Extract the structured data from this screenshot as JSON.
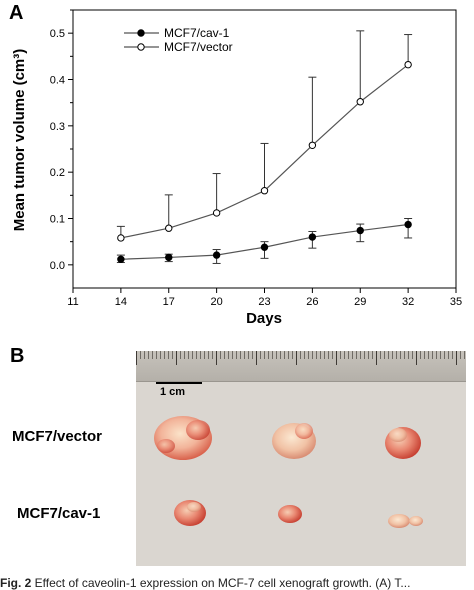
{
  "panel_a_label": "A",
  "panel_b_label": "B",
  "chart_data": {
    "type": "line",
    "xlabel": "Days",
    "ylabel": "Mean tumor volume (cm³)",
    "xlim": [
      11,
      35
    ],
    "ylim": [
      -0.05,
      0.55
    ],
    "x_ticks": [
      11,
      14,
      17,
      20,
      23,
      26,
      29,
      32,
      35
    ],
    "y_ticks": [
      0.0,
      0.1,
      0.2,
      0.3,
      0.4,
      0.5
    ],
    "y_tick_labels": [
      "0.0",
      "0.1",
      "0.2",
      "0.3",
      "0.4",
      "0.5"
    ],
    "legend_position": "top-left",
    "x": [
      14,
      17,
      20,
      23,
      26,
      29,
      32
    ],
    "series": [
      {
        "name": "MCF7/cav-1",
        "marker": "filled-circle",
        "values": [
          0.012,
          0.016,
          0.021,
          0.038,
          0.06,
          0.074,
          0.087
        ],
        "error_upper": [
          0.021,
          0.023,
          0.033,
          0.05,
          0.072,
          0.088,
          0.1
        ],
        "error_lower": [
          0.005,
          0.007,
          0.003,
          0.014,
          0.036,
          0.05,
          0.058
        ]
      },
      {
        "name": "MCF7/vector",
        "marker": "open-circle",
        "values": [
          0.058,
          0.079,
          0.112,
          0.16,
          0.258,
          0.352,
          0.432
        ],
        "error_upper": [
          0.083,
          0.151,
          0.197,
          0.262,
          0.405,
          0.505,
          0.497
        ],
        "error_lower": null
      }
    ]
  },
  "photo": {
    "scale_label": "1 cm",
    "row_labels": [
      "MCF7/vector",
      "MCF7/cav-1"
    ]
  },
  "caption_start": "Fig. 2",
  "caption_rest": "  Effect of caveolin-1 expression on MCF-7 cell xenograft growth. (A) T..."
}
